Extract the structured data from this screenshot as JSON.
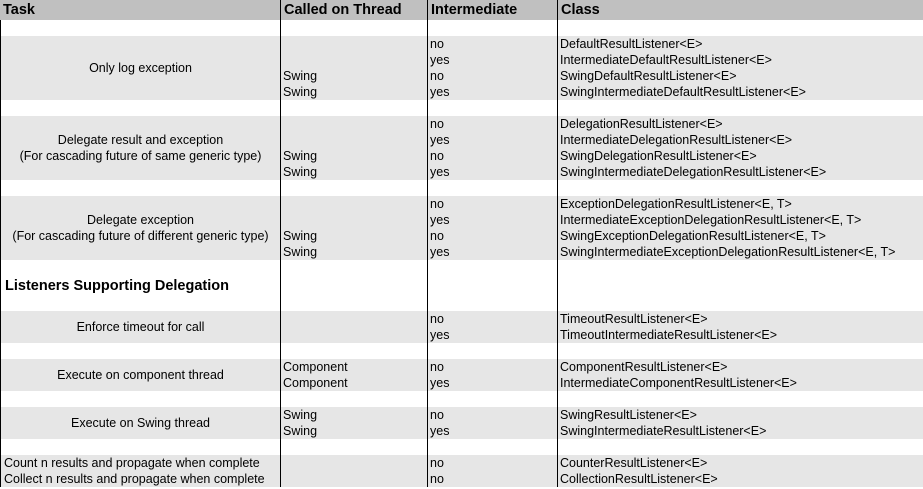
{
  "columns": [
    "Task",
    "Called on Thread",
    "Intermediate",
    "Class"
  ],
  "colors": {
    "header_bg": "#c0c0c0",
    "group_bg": "#e6e6e6",
    "border": "#000000"
  },
  "blocks": [
    {
      "type": "spacer"
    },
    {
      "type": "group",
      "task": [
        "Only log exception"
      ],
      "align": "center",
      "lines": [
        {
          "thread": "",
          "intermediate": "no",
          "class": "DefaultResultListener<E>"
        },
        {
          "thread": "",
          "intermediate": "yes",
          "class": "IntermediateDefaultResultListener<E>"
        },
        {
          "thread": "Swing",
          "intermediate": "no",
          "class": "SwingDefaultResultListener<E>"
        },
        {
          "thread": "Swing",
          "intermediate": "yes",
          "class": "SwingIntermediateDefaultResultListener<E>"
        }
      ]
    },
    {
      "type": "spacer"
    },
    {
      "type": "group",
      "task": [
        "Delegate result and exception",
        "(For cascading future of same generic type)"
      ],
      "align": "center",
      "lines": [
        {
          "thread": "",
          "intermediate": "no",
          "class": "DelegationResultListener<E>"
        },
        {
          "thread": "",
          "intermediate": "yes",
          "class": "IntermediateDelegationResultListener<E>"
        },
        {
          "thread": "Swing",
          "intermediate": "no",
          "class": "SwingDelegationResultListener<E>"
        },
        {
          "thread": "Swing",
          "intermediate": "yes",
          "class": "SwingIntermediateDelegationResultListener<E>"
        }
      ]
    },
    {
      "type": "spacer"
    },
    {
      "type": "group",
      "task": [
        "Delegate exception",
        "(For cascading future of different generic type)"
      ],
      "align": "center",
      "lines": [
        {
          "thread": "",
          "intermediate": "no",
          "class": "ExceptionDelegationResultListener<E, T>"
        },
        {
          "thread": "",
          "intermediate": "yes",
          "class": "IntermediateExceptionDelegationResultListener<E, T>"
        },
        {
          "thread": "Swing",
          "intermediate": "no",
          "class": "SwingExceptionDelegationResultListener<E, T>"
        },
        {
          "thread": "Swing",
          "intermediate": "yes",
          "class": "SwingIntermediateExceptionDelegationResultListener<E, T>"
        }
      ]
    },
    {
      "type": "heading",
      "text": "Listeners Supporting Delegation"
    },
    {
      "type": "group",
      "task": [
        "Enforce timeout for call"
      ],
      "align": "center",
      "lines": [
        {
          "thread": "",
          "intermediate": "no",
          "class": "TimeoutResultListener<E>"
        },
        {
          "thread": "",
          "intermediate": "yes",
          "class": "TimeoutIntermediateResultListener<E>"
        }
      ]
    },
    {
      "type": "spacer"
    },
    {
      "type": "group",
      "task": [
        "Execute on component thread"
      ],
      "align": "center",
      "lines": [
        {
          "thread": "Component",
          "intermediate": "no",
          "class": "ComponentResultListener<E>"
        },
        {
          "thread": "Component",
          "intermediate": "yes",
          "class": "IntermediateComponentResultListener<E>"
        }
      ]
    },
    {
      "type": "spacer"
    },
    {
      "type": "group",
      "task": [
        "Execute on Swing thread"
      ],
      "align": "center",
      "lines": [
        {
          "thread": "Swing",
          "intermediate": "no",
          "class": "SwingResultListener<E>"
        },
        {
          "thread": "Swing",
          "intermediate": "yes",
          "class": "SwingIntermediateResultListener<E>"
        }
      ]
    },
    {
      "type": "spacer"
    },
    {
      "type": "group",
      "task": [
        "Count n results and propagate when complete",
        "Collect n results and propagate when complete"
      ],
      "align": "left",
      "lines": [
        {
          "thread": "",
          "intermediate": "no",
          "class": "CounterResultListener<E>"
        },
        {
          "thread": "",
          "intermediate": "no",
          "class": "CollectionResultListener<E>"
        }
      ]
    }
  ]
}
